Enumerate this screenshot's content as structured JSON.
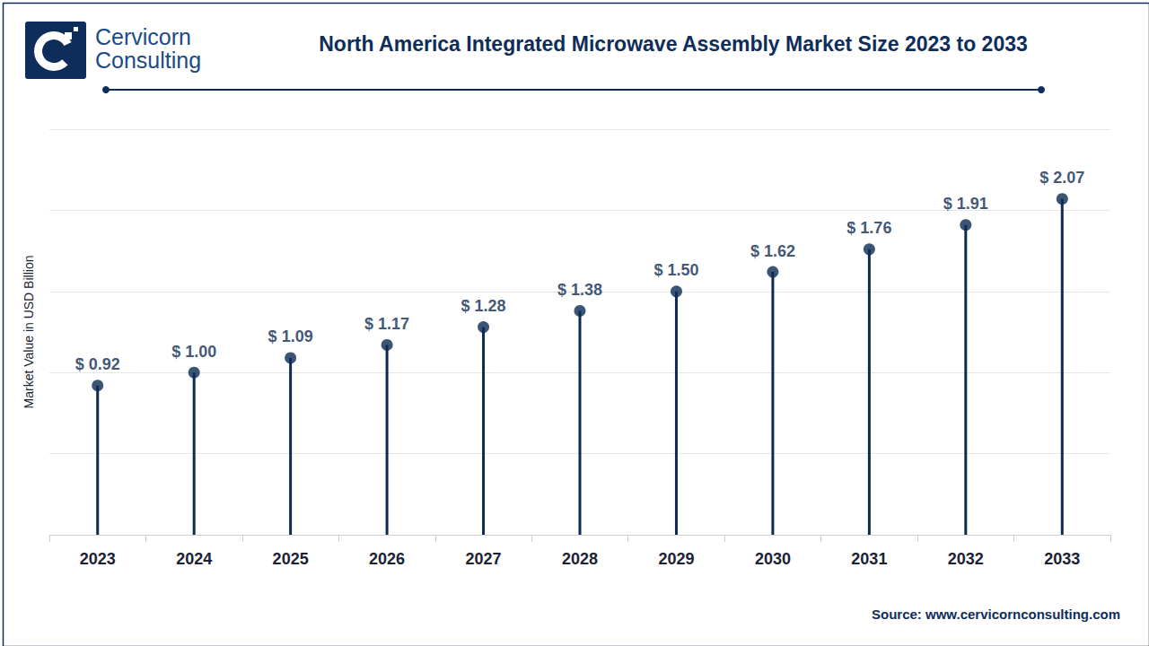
{
  "chart_data": {
    "type": "lollipop",
    "title": "North America Integrated Microwave Assembly Market Size 2023 to 2033",
    "y_label": "Market Value in USD Billion",
    "logo": [
      "Cervicorn",
      "Consulting"
    ],
    "source": "Source: www.cervicornconsulting.com",
    "categories": [
      "2023",
      "2024",
      "2025",
      "2026",
      "2027",
      "2028",
      "2029",
      "2030",
      "2031",
      "2032",
      "2033"
    ],
    "values": [
      0.92,
      1.0,
      1.09,
      1.17,
      1.28,
      1.38,
      1.5,
      1.62,
      1.76,
      1.91,
      2.07
    ],
    "value_labels": [
      "$ 0.92",
      "$ 1.00",
      "$ 1.09",
      "$ 1.17",
      "$ 1.28",
      "$ 1.38",
      "$ 1.50",
      "$ 1.62",
      "$ 1.76",
      "$ 1.91",
      "$ 2.07"
    ],
    "color": "#0d2b52",
    "ylim": [
      0,
      2.5
    ],
    "yticks": [
      0,
      0.5,
      1,
      1.5,
      2,
      2.5
    ],
    "grid": true,
    "data_labels": true,
    "tick_labels": "x"
  }
}
